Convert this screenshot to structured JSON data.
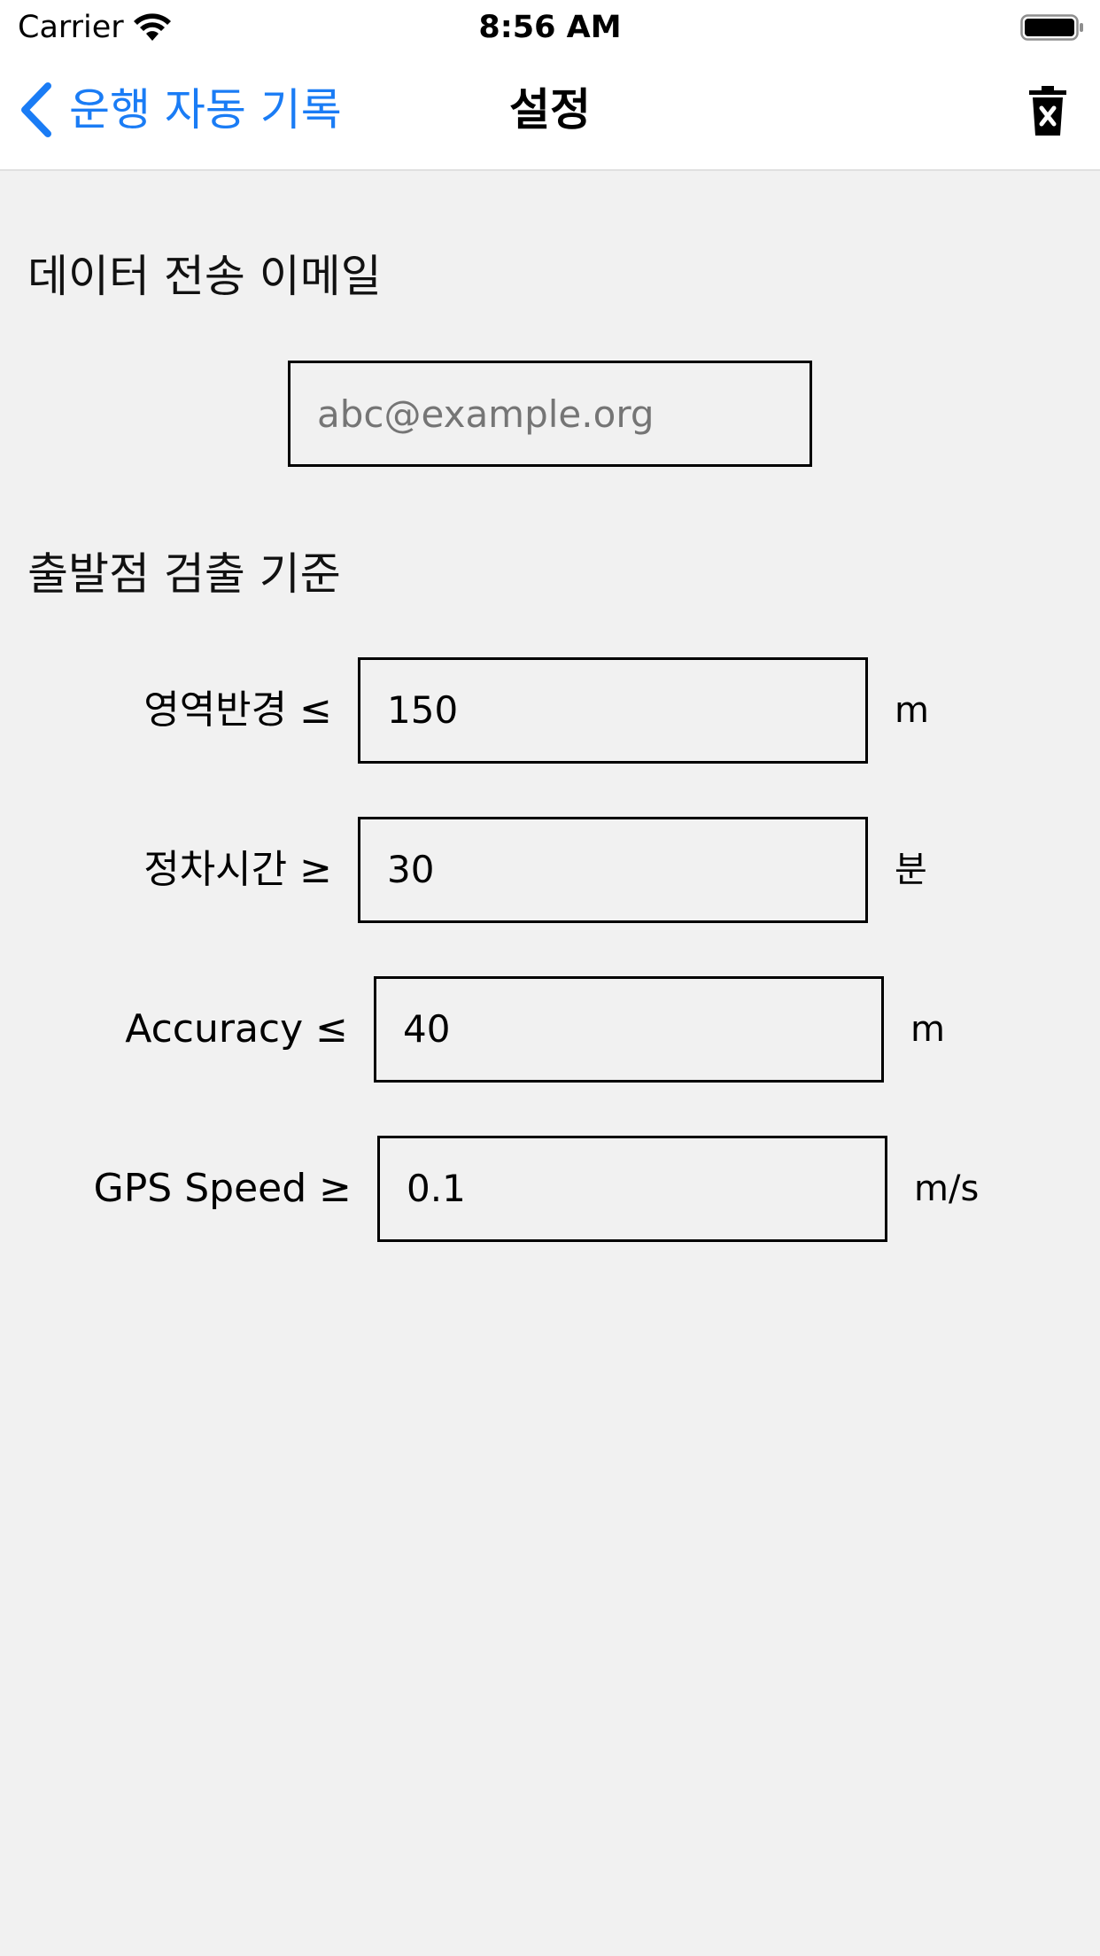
{
  "status_bar": {
    "carrier": "Carrier",
    "time": "8:56 AM",
    "wifi_icon": "wifi-icon",
    "battery_icon": "battery-icon"
  },
  "nav": {
    "back_label": "운행 자동 기록",
    "back_icon": "chevron-left-icon",
    "title": "설정",
    "trash_icon": "trash-icon",
    "accent_color": "#1a7cf5"
  },
  "email_section": {
    "heading": "데이터 전송 이메일",
    "email_placeholder": "abc@example.org",
    "email_value": ""
  },
  "detection_section": {
    "heading": "출발점 검출 기준",
    "rows": [
      {
        "label": "영역반경 ≤",
        "value": "150",
        "unit": "m"
      },
      {
        "label": "정차시간 ≥",
        "value": "30",
        "unit": "분"
      },
      {
        "label": "Accuracy ≤",
        "value": "40",
        "unit": "m"
      },
      {
        "label": "GPS Speed ≥",
        "value": "0.1",
        "unit": "m/s"
      }
    ]
  }
}
